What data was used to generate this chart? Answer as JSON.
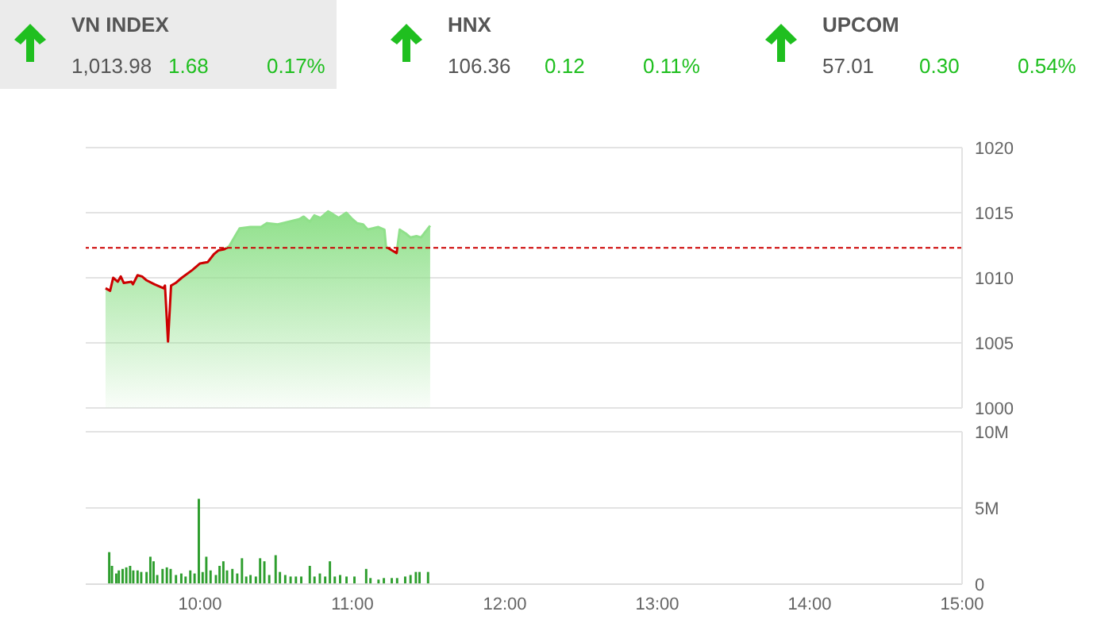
{
  "chart_data": [
    {
      "type": "other",
      "annotations": [
        "VN INDEX",
        "1,013.98",
        "1.68",
        "0.17%",
        "HNX",
        "106.36",
        "0.12",
        "0.11%",
        "UPCOM",
        "57.01",
        "0.30",
        "0.54%"
      ]
    },
    {
      "type": "area",
      "tick_labels": "y",
      "grid": "y",
      "xlim": [
        9.25,
        15
      ],
      "ylim": [
        1000,
        1020
      ],
      "yticks": [
        1000,
        1005,
        1010,
        1015,
        1020
      ],
      "ref_lines": [
        {
          "axis": "y",
          "value": 1012.3,
          "color": "#cc0000",
          "line_style": "dashed"
        }
      ],
      "series": [
        {
          "color": "#8fe08a",
          "x": [
            9.38,
            9.41,
            9.43,
            9.46,
            9.48,
            9.5,
            9.55,
            9.56,
            9.59,
            9.62,
            9.65,
            9.7,
            9.76,
            9.77,
            9.79,
            9.81,
            9.84,
            9.88,
            9.95,
            10,
            10.05,
            10.09,
            10.12,
            10.16,
            10.19,
            10.23,
            10.26,
            10.33,
            10.4,
            10.44,
            10.51,
            10.58,
            10.65,
            10.68,
            10.72,
            10.75,
            10.79,
            10.84,
            10.87,
            10.91,
            10.96,
            11,
            11.03,
            11.07,
            11.1,
            11.17,
            11.21,
            11.22,
            11.26,
            11.29,
            11.31,
            11.35,
            11.38,
            11.42,
            11.45,
            11.51
          ],
          "values": [
            1009.2,
            1009,
            1010,
            1009.7,
            1010.1,
            1009.6,
            1009.7,
            1009.5,
            1010.2,
            1010.1,
            1009.8,
            1009.5,
            1009.2,
            1009.4,
            1005.1,
            1009.4,
            1009.6,
            1010,
            1010.6,
            1011.1,
            1011.2,
            1011.8,
            1012.1,
            1012.2,
            1012.4,
            1013.2,
            1013.8,
            1013.9,
            1013.9,
            1014.2,
            1014.1,
            1014.3,
            1014.5,
            1014.7,
            1014.3,
            1014.8,
            1014.6,
            1015.1,
            1014.9,
            1014.6,
            1015,
            1014.5,
            1014.2,
            1014.1,
            1013.7,
            1013.9,
            1013.7,
            1012.4,
            1012.1,
            1011.9,
            1013.7,
            1013.4,
            1013.1,
            1013.2,
            1013.1,
            1014
          ]
        }
      ]
    },
    {
      "type": "bar",
      "grid": "y",
      "xlim": [
        9.25,
        15
      ],
      "xticks": [
        {
          "value": 10,
          "label": "10:00"
        },
        {
          "value": 11,
          "label": "11:00"
        },
        {
          "value": 12,
          "label": "12:00"
        },
        {
          "value": 13,
          "label": "13:00"
        },
        {
          "value": 14,
          "label": "14:00"
        },
        {
          "value": 15,
          "label": "15:00"
        }
      ],
      "ylim": [
        0,
        10
      ],
      "yticks": [
        {
          "value": 0,
          "label": "0"
        },
        {
          "value": 5,
          "label": "5M"
        },
        {
          "value": 10,
          "label": "10M"
        }
      ],
      "series": [
        {
          "color": "#2e9e2e",
          "x": [
            9.405,
            9.423,
            9.451,
            9.468,
            9.493,
            9.517,
            9.542,
            9.563,
            9.591,
            9.615,
            9.65,
            9.675,
            9.696,
            9.72,
            9.755,
            9.783,
            9.808,
            9.843,
            9.878,
            9.906,
            9.937,
            9.965,
            9.993,
            10.018,
            10.042,
            10.07,
            10.105,
            10.129,
            10.154,
            10.178,
            10.213,
            10.245,
            10.276,
            10.304,
            10.332,
            10.367,
            10.395,
            10.423,
            10.455,
            10.497,
            10.525,
            10.56,
            10.595,
            10.63,
            10.665,
            10.721,
            10.752,
            10.787,
            10.822,
            10.853,
            10.885,
            10.92,
            10.962,
            11.014,
            11.091,
            11.119,
            11.172,
            11.207,
            11.259,
            11.294,
            11.347,
            11.382,
            11.417,
            11.441,
            11.497
          ],
          "values": [
            2.1,
            1.2,
            0.7,
            0.9,
            1,
            1.1,
            1.2,
            0.9,
            0.9,
            0.8,
            0.8,
            1.8,
            1.5,
            0.6,
            1,
            1.1,
            1,
            0.6,
            0.7,
            0.5,
            0.9,
            0.7,
            5.6,
            0.8,
            1.8,
            0.9,
            0.6,
            1.2,
            1.5,
            0.9,
            1,
            0.7,
            1.7,
            0.5,
            0.6,
            0.5,
            1.7,
            1.5,
            0.6,
            1.9,
            0.8,
            0.6,
            0.5,
            0.5,
            0.5,
            1.2,
            0.5,
            0.7,
            0.5,
            1.5,
            0.5,
            0.6,
            0.5,
            0.5,
            1,
            0.4,
            0.3,
            0.4,
            0.4,
            0.4,
            0.5,
            0.6,
            0.8,
            0.8,
            0.8
          ]
        }
      ]
    }
  ]
}
